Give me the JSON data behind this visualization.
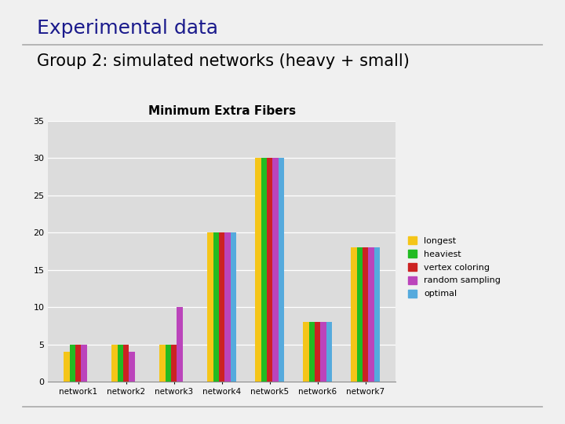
{
  "title_main": "Experimental data",
  "subtitle": "Group 2: simulated networks (heavy + small)",
  "chart_title": "Minimum Extra Fibers",
  "categories": [
    "network1",
    "network2",
    "network3",
    "network4",
    "network5",
    "network6",
    "network7"
  ],
  "series": {
    "longest": [
      4,
      5,
      5,
      20,
      30,
      8,
      18
    ],
    "heaviest": [
      5,
      5,
      5,
      20,
      30,
      8,
      18
    ],
    "vertex coloring": [
      5,
      5,
      5,
      20,
      30,
      8,
      18
    ],
    "random sampling": [
      5,
      4,
      10,
      20,
      30,
      8,
      18
    ],
    "optimal": [
      0,
      0,
      0,
      20,
      30,
      8,
      18
    ]
  },
  "colors": {
    "longest": "#F5C518",
    "heaviest": "#22BB22",
    "vertex coloring": "#CC2222",
    "random sampling": "#BB44BB",
    "optimal": "#55AADD"
  },
  "ylim": [
    0,
    35
  ],
  "yticks": [
    0,
    5,
    10,
    15,
    20,
    25,
    30,
    35
  ],
  "page_bg": "#F0F0F0",
  "chart_bg": "#DCDCDC",
  "title_color": "#1A1A8C",
  "subtitle_color": "#000000",
  "title_fontsize": 18,
  "subtitle_fontsize": 15,
  "chart_title_fontsize": 11,
  "legend_fontsize": 8,
  "xtick_fontsize": 7.5,
  "ytick_fontsize": 8,
  "bar_width": 0.12
}
